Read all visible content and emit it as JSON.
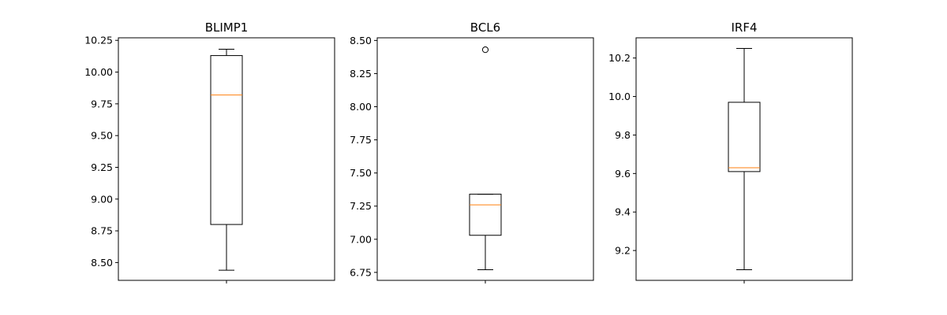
{
  "chart_data": [
    {
      "type": "boxplot",
      "title": "BLIMP1",
      "ylim": [
        8.36,
        10.27
      ],
      "yticks": [
        "8.50",
        "8.75",
        "9.00",
        "9.25",
        "9.50",
        "9.75",
        "10.00",
        "10.25"
      ],
      "box": {
        "whisker_low": 8.44,
        "q1": 8.8,
        "median": 9.82,
        "q3": 10.13,
        "whisker_high": 10.18
      },
      "outliers": []
    },
    {
      "type": "boxplot",
      "title": "BCL6",
      "ylim": [
        6.69,
        8.52
      ],
      "yticks": [
        "6.75",
        "7.00",
        "7.25",
        "7.50",
        "7.75",
        "8.00",
        "8.25",
        "8.50"
      ],
      "box": {
        "whisker_low": 6.77,
        "q1": 7.03,
        "median": 7.26,
        "q3": 7.34,
        "whisker_high": 7.34
      },
      "outliers": [
        8.43
      ]
    },
    {
      "type": "boxplot",
      "title": "IRF4",
      "ylim": [
        9.045,
        10.305
      ],
      "yticks": [
        "9.2",
        "9.4",
        "9.6",
        "9.8",
        "10.0",
        "10.2"
      ],
      "box": {
        "whisker_low": 9.1,
        "q1": 9.61,
        "median": 9.63,
        "q3": 9.97,
        "whisker_high": 10.25
      },
      "outliers": []
    }
  ],
  "style": {
    "box_color": "#000000",
    "median_color": "#ff7f0e"
  }
}
